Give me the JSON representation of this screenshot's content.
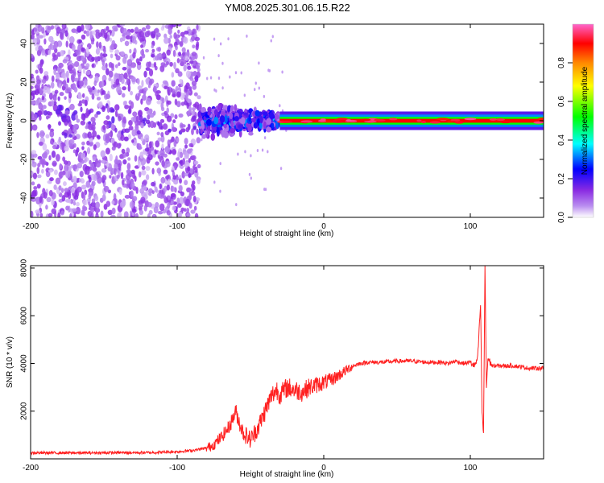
{
  "title": "YM08.2025.301.06.15.R22",
  "chart_data": [
    {
      "type": "heatmap",
      "xlabel": "Height of straight line (km)",
      "ylabel": "Frequency (Hz)",
      "xlim": [
        -200,
        150
      ],
      "ylim": [
        -50,
        50
      ],
      "xticks": [
        -200,
        -100,
        0,
        100
      ],
      "yticks": [
        -40,
        -20,
        0,
        20,
        40
      ],
      "colorbar": {
        "label": "Normalized spectral amplitude",
        "range": [
          0,
          1
        ],
        "ticks": [
          "0.0",
          "0.2",
          "0.4",
          "0.6",
          "0.8"
        ],
        "colormap": [
          "#ffffff",
          "#8a2be2",
          "#0000ff",
          "#00ffff",
          "#00ff00",
          "#ffff00",
          "#ff8800",
          "#ff0000",
          "#ff66cc"
        ]
      },
      "description_points": [
        {
          "x_range": [
            -200,
            -85
          ],
          "freq_range": [
            -50,
            50
          ],
          "amplitude": 0.1
        },
        {
          "x_range": [
            -85,
            -30
          ],
          "freq_range": [
            -10,
            10
          ],
          "amplitude": 0.3
        },
        {
          "x_range": [
            -30,
            150
          ],
          "freq_range": [
            -2,
            2
          ],
          "amplitude": 0.9
        }
      ]
    },
    {
      "type": "line",
      "xlabel": "Height of straight line (km)",
      "ylabel": "SNR (10 * v/v)",
      "xlim": [
        -200,
        150
      ],
      "ylim": [
        0,
        8100
      ],
      "xticks": [
        -200,
        -100,
        0,
        100
      ],
      "yticks": [
        2000,
        4000,
        6000,
        8000
      ],
      "series": [
        {
          "name": "SNR",
          "color": "#ff2020",
          "x": [
            -200,
            -180,
            -160,
            -140,
            -120,
            -100,
            -90,
            -80,
            -75,
            -70,
            -65,
            -62,
            -60,
            -58,
            -55,
            -50,
            -48,
            -45,
            -42,
            -40,
            -38,
            -35,
            -32,
            -30,
            -28,
            -25,
            -20,
            -15,
            -10,
            -5,
            0,
            5,
            10,
            15,
            20,
            25,
            30,
            40,
            50,
            60,
            70,
            80,
            85,
            90,
            95,
            100,
            103,
            105,
            107,
            108,
            109,
            110,
            111,
            112,
            115,
            120,
            130,
            140,
            150
          ],
          "y": [
            250,
            250,
            250,
            260,
            260,
            300,
            350,
            450,
            600,
            900,
            1300,
            1700,
            2000,
            1600,
            1100,
            800,
            1000,
            1300,
            1700,
            2000,
            2300,
            2700,
            2900,
            2700,
            2800,
            3000,
            2900,
            2800,
            3000,
            3100,
            3200,
            3300,
            3500,
            3700,
            3900,
            4000,
            4050,
            4050,
            4100,
            4100,
            4050,
            4050,
            4000,
            4100,
            4000,
            4050,
            3900,
            4200,
            6500,
            2000,
            1000,
            8000,
            3000,
            4200,
            3900,
            3900,
            3900,
            3800,
            3800
          ]
        }
      ]
    }
  ]
}
